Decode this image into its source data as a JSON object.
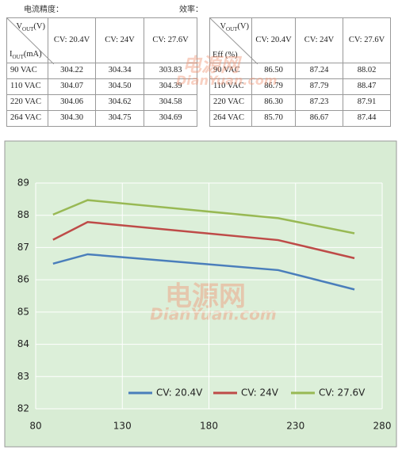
{
  "labels": {
    "accuracy": "电流精度：",
    "efficiency": "效率："
  },
  "watermark": {
    "cn": "电源网",
    "en": "DianYuan.com"
  },
  "current_table": {
    "corner": {
      "top": {
        "main": "V",
        "sub": "OUT",
        "unit": "(V)"
      },
      "bottom": {
        "main": "I",
        "sub": "OUT",
        "unit": "(mA)"
      }
    },
    "headers": [
      "CV: 20.4V",
      "CV: 24V",
      "CV: 27.6V"
    ],
    "rows": [
      [
        "90 VAC",
        "304.22",
        "304.34",
        "303.83"
      ],
      [
        "110 VAC",
        "304.07",
        "304.50",
        "304.39"
      ],
      [
        "220 VAC",
        "304.06",
        "304.62",
        "304.58"
      ],
      [
        "264 VAC",
        "304.30",
        "304.75",
        "304.69"
      ]
    ]
  },
  "efficiency_table": {
    "corner": {
      "top": {
        "main": "V",
        "sub": "OUT",
        "unit": "(V)"
      },
      "bottom": {
        "main": "Eff (%)",
        "sub": "",
        "unit": ""
      }
    },
    "headers": [
      "CV: 20.4V",
      "CV: 24V",
      "CV: 27.6V"
    ],
    "rows": [
      [
        "90 VAC",
        "86.50",
        "87.24",
        "88.02"
      ],
      [
        "110 VAC",
        "86.79",
        "87.79",
        "88.47"
      ],
      [
        "220 VAC",
        "86.30",
        "87.23",
        "87.91"
      ],
      [
        "264 VAC",
        "85.70",
        "86.67",
        "87.44"
      ]
    ]
  },
  "chart_data": {
    "type": "line",
    "x": [
      90,
      110,
      220,
      264
    ],
    "series": [
      {
        "name": "CV: 20.4V",
        "color": "#4a7ebb",
        "values": [
          86.5,
          86.79,
          86.3,
          85.7
        ]
      },
      {
        "name": "CV: 24V",
        "color": "#be4b48",
        "values": [
          87.24,
          87.79,
          87.23,
          86.67
        ]
      },
      {
        "name": "CV: 27.6V",
        "color": "#98b954",
        "values": [
          88.02,
          88.47,
          87.91,
          87.44
        ]
      }
    ],
    "xlim": [
      80,
      280
    ],
    "xticks": [
      80,
      130,
      180,
      230,
      280
    ],
    "ylim": [
      82,
      89
    ],
    "yticks": [
      82,
      83,
      84,
      85,
      86,
      87,
      88,
      89
    ],
    "grid": true,
    "legend": "bottom"
  }
}
